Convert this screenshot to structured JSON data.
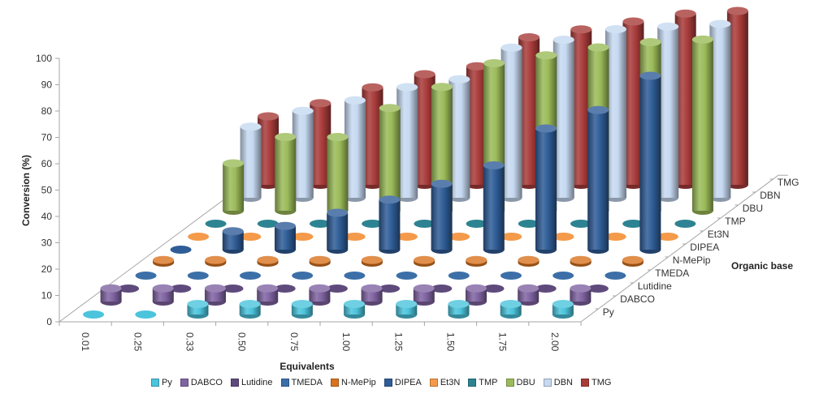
{
  "chart_data": {
    "type": "bar",
    "subtype": "3d-cylinder",
    "xlabel": "Equivalents",
    "ylabel": "Conversion (%)",
    "zlabel": "Organic base",
    "ylim": [
      0,
      100
    ],
    "yticks": [
      "0",
      "10",
      "20",
      "30",
      "40",
      "50",
      "60",
      "70",
      "80",
      "90",
      "100"
    ],
    "categories": [
      "0.01",
      "0.25",
      "0.33",
      "0.50",
      "0.75",
      "1.00",
      "1.25",
      "1.50",
      "1.75",
      "2.00"
    ],
    "legend_position": "bottom",
    "series": [
      {
        "name": "Py",
        "color": "#4bc4dc",
        "values": [
          0,
          0,
          4,
          4,
          4,
          4,
          4,
          4,
          4,
          4
        ]
      },
      {
        "name": "DABCO",
        "color": "#8064a2",
        "values": [
          5,
          5,
          5,
          5,
          5,
          5,
          5,
          5,
          5,
          5
        ]
      },
      {
        "name": "Lutidine",
        "color": "#5f4a7c",
        "values": [
          0,
          0,
          0,
          0,
          0,
          0,
          0,
          0,
          0,
          0
        ]
      },
      {
        "name": "TMEDA",
        "color": "#3c6fa8",
        "values": [
          0,
          0,
          0,
          0,
          0,
          0,
          0,
          0,
          0,
          0
        ]
      },
      {
        "name": "N-MePip",
        "color": "#d9731f",
        "values": [
          1,
          1,
          1,
          1,
          1,
          1,
          1,
          1,
          1,
          1
        ]
      },
      {
        "name": "DIPEA",
        "color": "#2f5d97",
        "values": [
          0,
          7,
          9,
          14,
          19,
          25,
          32,
          46,
          53,
          66
        ]
      },
      {
        "name": "Et3N",
        "color": "#f49a4a",
        "values": [
          0,
          0,
          0,
          0,
          0,
          0,
          0,
          0,
          0,
          0
        ]
      },
      {
        "name": "TMP",
        "color": "#2d8391",
        "values": [
          0,
          0,
          0,
          0,
          0,
          0,
          0,
          0,
          0,
          0
        ]
      },
      {
        "name": "DBU",
        "color": "#9bbb59",
        "values": [
          18,
          28,
          28,
          39,
          47,
          56,
          59,
          62,
          64,
          65
        ]
      },
      {
        "name": "DBN",
        "color": "#c6d9f1",
        "values": [
          27,
          33,
          37,
          42,
          45,
          57,
          60,
          64,
          65,
          66
        ]
      },
      {
        "name": "TMG",
        "color": "#a83c3a",
        "values": [
          26,
          31,
          37,
          42,
          45,
          56,
          59,
          62,
          65,
          66
        ]
      }
    ]
  }
}
